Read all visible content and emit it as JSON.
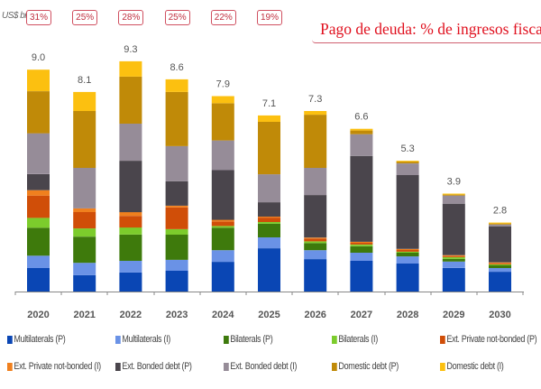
{
  "chart_data": {
    "type": "bar",
    "stacked": true,
    "title": "Pago de deuda: % de ingresos fisca",
    "ylabel": "US$ bn",
    "xlabel": "",
    "ylim": [
      0,
      9.5
    ],
    "grid": false,
    "legend_position": "bottom",
    "categories": [
      "2020",
      "2021",
      "2022",
      "2023",
      "2024",
      "2025",
      "2026",
      "2027",
      "2028",
      "2029",
      "2030"
    ],
    "totals": [
      "9.0",
      "8.1",
      "9.3",
      "8.6",
      "7.9",
      "7.1",
      "7.3",
      "6.6",
      "5.3",
      "3.9",
      "2.8"
    ],
    "revenue_share_labels": [
      "31%",
      "25%",
      "28%",
      "25%",
      "22%",
      "19%"
    ],
    "series": [
      {
        "name": "Multilaterals (P)",
        "color": "#0a46b4",
        "values": [
          0.95,
          0.66,
          0.77,
          0.84,
          1.2,
          1.75,
          1.31,
          1.24,
          1.13,
          0.95,
          0.8
        ]
      },
      {
        "name": "Multilaterals (I)",
        "color": "#6a92e6",
        "values": [
          0.5,
          0.5,
          0.47,
          0.44,
          0.47,
          0.44,
          0.36,
          0.33,
          0.29,
          0.26,
          0.15
        ]
      },
      {
        "name": "Bilaterals (P)",
        "color": "#3e7a0c",
        "values": [
          1.13,
          1.06,
          1.06,
          1.02,
          0.91,
          0.55,
          0.29,
          0.26,
          0.15,
          0.11,
          0.11
        ]
      },
      {
        "name": "Bilaterals (I)",
        "color": "#7ccc2c",
        "values": [
          0.4,
          0.33,
          0.29,
          0.22,
          0.07,
          0.07,
          0.07,
          0.07,
          0.04,
          0.07,
          0.04
        ]
      },
      {
        "name": "Ext. Private not-bonded (P)",
        "color": "#d04e08",
        "values": [
          0.9,
          0.66,
          0.47,
          0.88,
          0.18,
          0.18,
          0.11,
          0.07,
          0.07,
          0.04,
          0.04
        ]
      },
      {
        "name": "Ext. Private not-bonded (I)",
        "color": "#f0801e",
        "values": [
          0.22,
          0.15,
          0.15,
          0.07,
          0.07,
          0.04,
          0.04,
          0.04,
          0.04,
          0.04,
          0.04
        ]
      },
      {
        "name": "Ext. Bonded debt (P)",
        "color": "#4a454c",
        "values": [
          0.65,
          0.0,
          2.08,
          0.99,
          2.01,
          0.58,
          1.72,
          3.47,
          2.99,
          2.08,
          1.46
        ]
      },
      {
        "name": "Ext. Bonded debt (I)",
        "color": "#968c98",
        "values": [
          1.65,
          1.64,
          1.5,
          1.42,
          1.2,
          1.13,
          1.1,
          0.88,
          0.47,
          0.33,
          0.07
        ]
      },
      {
        "name": "Domestic debt (P)",
        "color": "#c08a08",
        "values": [
          1.7,
          2.3,
          1.9,
          2.19,
          1.5,
          2.12,
          2.15,
          0.15,
          0.07,
          0.04,
          0.04
        ]
      },
      {
        "name": "Domestic debt (I)",
        "color": "#fcc010",
        "values": [
          0.87,
          0.77,
          0.62,
          0.51,
          0.29,
          0.26,
          0.15,
          0.07,
          0.04,
          0.04,
          0.04
        ]
      }
    ]
  }
}
